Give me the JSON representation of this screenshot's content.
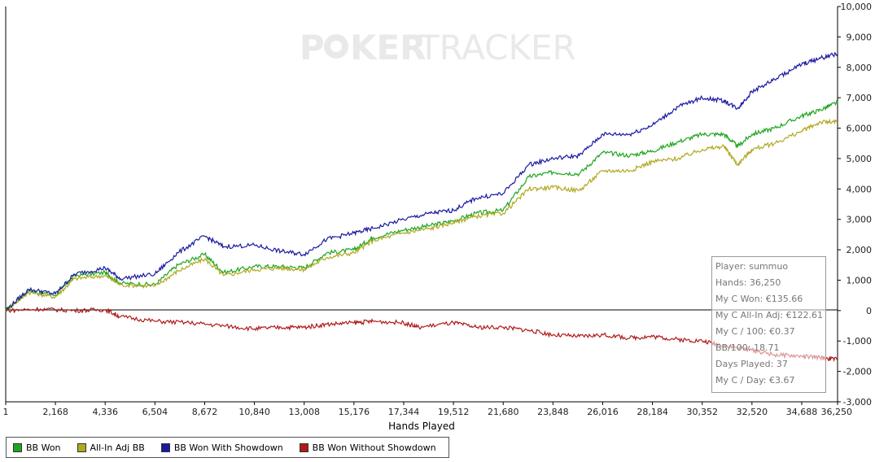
{
  "watermark": {
    "left": "P",
    "right": "KER",
    "tail": "TRACKER"
  },
  "chart_data": {
    "type": "line",
    "xlabel": "Hands Played",
    "ylabel": "",
    "xlim": [
      1,
      36250
    ],
    "ylim": [
      -3000,
      10000
    ],
    "x_ticks": [
      1,
      2168,
      4336,
      6504,
      8672,
      10840,
      13008,
      15176,
      17344,
      19512,
      21680,
      23848,
      26016,
      28184,
      30352,
      32520,
      34688,
      36250
    ],
    "x_tick_labels": [
      "1",
      "2,168",
      "4,336",
      "6,504",
      "8,672",
      "10,840",
      "13,008",
      "15,176",
      "17,344",
      "19,512",
      "21,680",
      "23,848",
      "26,016",
      "28,184",
      "30,352",
      "32,520",
      "34,688",
      "36,250"
    ],
    "y_ticks": [
      10000,
      9000,
      8000,
      7000,
      6000,
      5000,
      4000,
      3000,
      2000,
      1000,
      0,
      -1000,
      -2000,
      -3000
    ],
    "y_tick_labels": [
      "10,000",
      "9,000",
      "8,000",
      "7,000",
      "6,000",
      "5,000",
      "4,000",
      "3,000",
      "2,000",
      "1,000",
      "0",
      "-1,000",
      "-2,000",
      "-3,000"
    ],
    "y_axis_side": "right",
    "grid": false,
    "legend_position": "bottom-left",
    "series": [
      {
        "name": "BB Won",
        "color": "#1fa51f",
        "x": [
          1,
          1000,
          2168,
          3000,
          4336,
          5000,
          6504,
          7500,
          8672,
          9500,
          10840,
          12000,
          13008,
          14000,
          15176,
          16000,
          17344,
          18500,
          19512,
          20500,
          21680,
          22800,
          23848,
          25000,
          26016,
          27200,
          28184,
          29300,
          30352,
          31300,
          31900,
          32520,
          33500,
          34688,
          35500,
          36250
        ],
        "y": [
          0,
          650,
          500,
          1150,
          1250,
          900,
          850,
          1500,
          1850,
          1250,
          1450,
          1450,
          1400,
          1900,
          2000,
          2400,
          2650,
          2800,
          2950,
          3200,
          3300,
          4400,
          4550,
          4500,
          5200,
          5100,
          5250,
          5550,
          5800,
          5800,
          5400,
          5800,
          6000,
          6400,
          6600,
          6850
        ]
      },
      {
        "name": "All-In Adj BB",
        "color": "#b0a820",
        "x": [
          1,
          1000,
          2168,
          3000,
          4336,
          5000,
          6504,
          7500,
          8672,
          9500,
          10840,
          12000,
          13008,
          14000,
          15176,
          16000,
          17344,
          18500,
          19512,
          20500,
          21680,
          22800,
          23848,
          25000,
          26016,
          27200,
          28184,
          29300,
          30352,
          31300,
          31900,
          32520,
          33500,
          34688,
          35500,
          36250
        ],
        "y": [
          0,
          600,
          450,
          1050,
          1150,
          850,
          800,
          1300,
          1700,
          1150,
          1350,
          1400,
          1350,
          1750,
          1900,
          2300,
          2550,
          2700,
          2900,
          3100,
          3200,
          4000,
          4050,
          3950,
          4600,
          4600,
          4900,
          5000,
          5300,
          5400,
          4800,
          5300,
          5500,
          5900,
          6200,
          6200
        ]
      },
      {
        "name": "BB Won With Showdown",
        "color": "#1a1aa0",
        "x": [
          1,
          1000,
          2168,
          3000,
          4336,
          5000,
          6504,
          7500,
          8672,
          9500,
          10840,
          12000,
          13008,
          14000,
          15176,
          16000,
          17344,
          18500,
          19512,
          20500,
          21680,
          22800,
          23848,
          25000,
          26016,
          27200,
          28184,
          29300,
          30352,
          31300,
          31900,
          32520,
          33500,
          34688,
          35500,
          36250
        ],
        "y": [
          0,
          700,
          550,
          1200,
          1400,
          1050,
          1200,
          1900,
          2450,
          2100,
          2150,
          1950,
          1850,
          2350,
          2550,
          2700,
          3000,
          3200,
          3300,
          3700,
          3850,
          4800,
          5000,
          5100,
          5800,
          5800,
          6100,
          6700,
          7000,
          6900,
          6650,
          7200,
          7600,
          8100,
          8300,
          8450
        ]
      },
      {
        "name": "BB Won Without Showdown",
        "color": "#b01a1a",
        "x": [
          1,
          1500,
          3000,
          4336,
          5000,
          6504,
          8000,
          9500,
          10840,
          12000,
          13008,
          14000,
          15176,
          16000,
          17344,
          18000,
          19512,
          20500,
          21680,
          22800,
          23848,
          25000,
          26016,
          27200,
          28184,
          29300,
          30352,
          31300,
          32520,
          33500,
          34688,
          35500,
          36250
        ],
        "y": [
          0,
          50,
          0,
          30,
          -200,
          -350,
          -400,
          -500,
          -600,
          -550,
          -550,
          -450,
          -400,
          -350,
          -400,
          -550,
          -400,
          -550,
          -550,
          -650,
          -800,
          -850,
          -800,
          -900,
          -850,
          -950,
          -1000,
          -1150,
          -1300,
          -1450,
          -1500,
          -1550,
          -1600
        ]
      }
    ]
  },
  "stats": [
    "Player: summuo",
    "Hands: 36,250",
    "My C Won: €135.66",
    "My C All-In Adj: €122.61",
    "My C / 100: €0.37",
    "BB/100: 18.71",
    "Days Played: 37",
    "My C / Day: €3.67"
  ]
}
